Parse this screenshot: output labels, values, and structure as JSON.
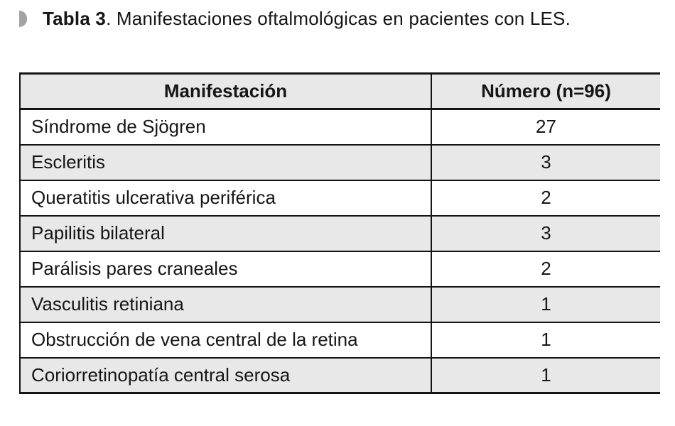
{
  "caption": {
    "bullet_icon": "half-circle-bullet",
    "bold": "Tabla 3",
    "rest": ". Manifestaciones oftalmológicas en pacientes con LES."
  },
  "table": {
    "columns": [
      "Manifestación",
      "Número (n=96)"
    ],
    "rows": [
      {
        "label": "Síndrome de Sjögren",
        "value": "27"
      },
      {
        "label": "Escleritis",
        "value": "3"
      },
      {
        "label": "Queratitis ulcerativa periférica",
        "value": "2"
      },
      {
        "label": "Papilitis bilateral",
        "value": "3"
      },
      {
        "label": "Parálisis pares craneales",
        "value": "2"
      },
      {
        "label": "Vasculitis retiniana",
        "value": "1"
      },
      {
        "label": "Obstrucción de vena central de la retina",
        "value": "1"
      },
      {
        "label": "Coriorretinopatía central serosa",
        "value": "1"
      }
    ]
  },
  "chart_data": {
    "type": "table",
    "title": "Tabla 3. Manifestaciones oftalmológicas en pacientes con LES.",
    "categories": [
      "Síndrome de Sjögren",
      "Escleritis",
      "Queratitis ulcerativa periférica",
      "Papilitis bilateral",
      "Parálisis pares craneales",
      "Vasculitis retiniana",
      "Obstrucción de vena central de la retina",
      "Coriorretinopatía central serosa"
    ],
    "values": [
      27,
      3,
      2,
      3,
      2,
      1,
      1,
      1
    ],
    "xlabel": "Manifestación",
    "ylabel": "Número (n=96)"
  },
  "colors": {
    "page_bg": "#ffffff",
    "header_bg": "#e8e8e8",
    "row_alt_bg": "#e8e8e8",
    "border": "#141414",
    "text": "#161616",
    "bullet": "#a3a3a3"
  }
}
